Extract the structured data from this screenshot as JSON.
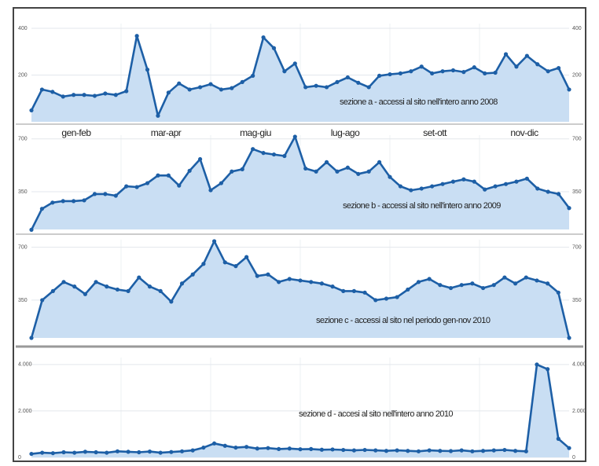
{
  "chart_data": [
    {
      "type": "area",
      "annotation": "sezione a - accessi al sito nell'intero anno 2008",
      "period_labels": [
        "gen-feb",
        "mar-apr",
        "mag-giu",
        "lug-ago",
        "set-ott",
        "nov-dic"
      ],
      "color": "#1d5fa6",
      "fill": "#c9def3",
      "grid": true,
      "ylim": [
        0,
        420
      ],
      "yticks": [
        200,
        400
      ],
      "values": [
        49,
        138,
        128,
        108,
        115,
        115,
        111,
        121,
        115,
        131,
        367,
        223,
        26,
        125,
        164,
        138,
        148,
        161,
        138,
        144,
        170,
        197,
        361,
        315,
        216,
        249,
        148,
        154,
        148,
        170,
        190,
        167,
        148,
        197,
        203,
        207,
        216,
        236,
        207,
        216,
        220,
        213,
        233,
        207,
        210,
        289,
        236,
        282,
        246,
        216,
        230,
        138
      ]
    },
    {
      "type": "area",
      "annotation": "sezione b - accessi al sito nell'intero anno 2009",
      "color": "#1d5fa6",
      "fill": "#c9def3",
      "grid": true,
      "ylim": [
        100,
        725
      ],
      "yticks": [
        350,
        700
      ],
      "values": [
        98,
        237,
        278,
        288,
        288,
        293,
        335,
        335,
        324,
        386,
        381,
        407,
        458,
        458,
        391,
        489,
        566,
        360,
        407,
        484,
        499,
        633,
        607,
        597,
        587,
        715,
        504,
        484,
        546,
        484,
        510,
        468,
        484,
        546,
        448,
        386,
        360,
        371,
        386,
        401,
        417,
        432,
        417,
        365,
        386,
        401,
        417,
        437,
        371,
        350,
        335,
        242
      ]
    },
    {
      "type": "area",
      "annotation": "sezione c - accessi al sito nel periodo gen-nov 2010",
      "color": "#1d5fa6",
      "fill": "#c9def3",
      "grid": true,
      "ylim": [
        100,
        750
      ],
      "yticks": [
        350,
        700
      ],
      "values": [
        100,
        350,
        410,
        470,
        440,
        390,
        470,
        440,
        420,
        410,
        500,
        440,
        410,
        340,
        460,
        520,
        590,
        740,
        600,
        575,
        635,
        510,
        520,
        470,
        490,
        480,
        470,
        460,
        440,
        410,
        410,
        400,
        350,
        360,
        370,
        420,
        470,
        490,
        450,
        430,
        450,
        460,
        430,
        450,
        500,
        460,
        500,
        480,
        460,
        400,
        100
      ]
    },
    {
      "type": "area",
      "annotation": "sezione d - accesi al sito nell'intero anno 2010",
      "color": "#1d5fa6",
      "fill": "#c9def3",
      "grid": true,
      "ylim": [
        0,
        4300
      ],
      "yticks": [
        0,
        {
          "value": 2000,
          "label": "2.000"
        },
        {
          "value": 4000,
          "label": "4.000"
        }
      ],
      "values": [
        150,
        200,
        180,
        220,
        200,
        240,
        220,
        200,
        260,
        240,
        220,
        250,
        200,
        230,
        260,
        300,
        420,
        600,
        500,
        420,
        450,
        380,
        400,
        360,
        380,
        350,
        360,
        330,
        340,
        320,
        300,
        320,
        300,
        280,
        300,
        280,
        260,
        300,
        280,
        270,
        300,
        260,
        280,
        300,
        320,
        280,
        260,
        4000,
        3800,
        800,
        400
      ]
    }
  ]
}
